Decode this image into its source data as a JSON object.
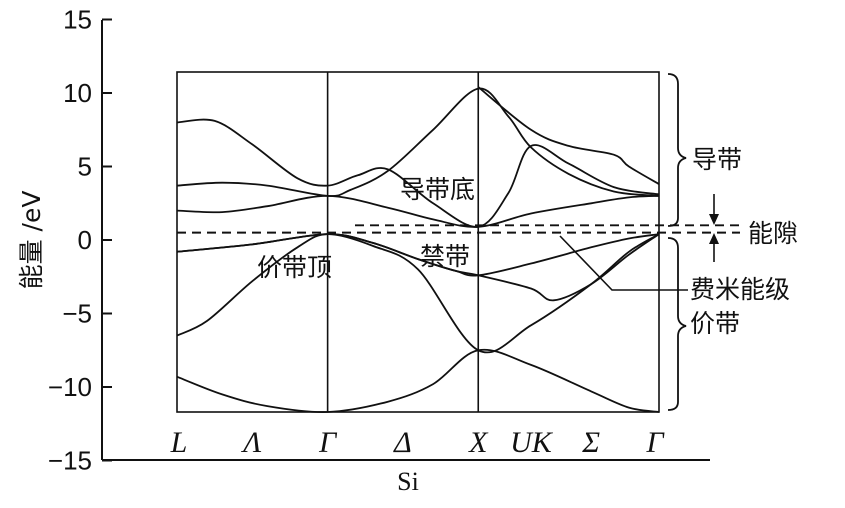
{
  "chart_data": {
    "type": "line",
    "title": "",
    "xlabel": "Si",
    "ylabel": "能量 /eV",
    "ylim": [
      -15,
      15
    ],
    "yticks": [
      15,
      10,
      5,
      0,
      -5,
      -10,
      -15
    ],
    "k_points": [
      "L",
      "Λ",
      "Γ",
      "Δ",
      "X",
      "UK",
      "Σ",
      "Γ"
    ],
    "k_point_positions": [
      0,
      0.5,
      1,
      1.5,
      2,
      2.35,
      2.75,
      3.2
    ],
    "fermi_level": 0.5,
    "band_gap_edge": 1.0,
    "grid": false,
    "series": [
      {
        "values": [
          [
            0,
            -9.3
          ],
          [
            0.3,
            -10.5
          ],
          [
            0.6,
            -11.3
          ],
          [
            1,
            -11.7
          ],
          [
            1.4,
            -11.0
          ],
          [
            1.7,
            -9.8
          ],
          [
            2,
            -7.5
          ],
          [
            2.35,
            -8.5
          ],
          [
            2.75,
            -10.3
          ],
          [
            3.0,
            -11.4
          ],
          [
            3.2,
            -11.7
          ]
        ]
      },
      {
        "values": [
          [
            0,
            -6.5
          ],
          [
            0.2,
            -5.5
          ],
          [
            0.5,
            -2.8
          ],
          [
            0.8,
            -0.5
          ],
          [
            1,
            0.4
          ],
          [
            1.3,
            -0.4
          ],
          [
            1.6,
            -2.0
          ],
          [
            2,
            -7.5
          ],
          [
            2.35,
            -5.8
          ],
          [
            2.75,
            -3.0
          ],
          [
            3.0,
            -0.8
          ],
          [
            3.2,
            0.4
          ]
        ]
      },
      {
        "values": [
          [
            0,
            -0.8
          ],
          [
            0.5,
            -0.3
          ],
          [
            1,
            0.4
          ],
          [
            1.3,
            -0.2
          ],
          [
            1.6,
            -1.3
          ],
          [
            1.85,
            -2.1
          ],
          [
            2,
            -2.4
          ],
          [
            2.35,
            -3.3
          ],
          [
            2.5,
            -4.1
          ],
          [
            2.75,
            -3.0
          ],
          [
            3.0,
            -1.0
          ],
          [
            3.2,
            0.4
          ]
        ]
      },
      {
        "values": [
          [
            0,
            -0.8
          ],
          [
            0.5,
            -0.3
          ],
          [
            1,
            0.4
          ],
          [
            1.3,
            -0.2
          ],
          [
            1.6,
            -1.3
          ],
          [
            1.85,
            -2.1
          ],
          [
            2,
            -2.4
          ],
          [
            2.35,
            -1.6
          ],
          [
            2.75,
            -0.5
          ],
          [
            3.0,
            0.1
          ],
          [
            3.2,
            0.4
          ]
        ]
      },
      {
        "values": [
          [
            0,
            2.0
          ],
          [
            0.3,
            1.9
          ],
          [
            0.6,
            2.3
          ],
          [
            1,
            3.0
          ],
          [
            1.4,
            2.2
          ],
          [
            1.7,
            1.4
          ],
          [
            2,
            0.9
          ],
          [
            2.35,
            1.8
          ],
          [
            2.75,
            2.5
          ],
          [
            3.0,
            2.9
          ],
          [
            3.2,
            3.0
          ]
        ]
      },
      {
        "values": [
          [
            0,
            3.7
          ],
          [
            0.3,
            3.9
          ],
          [
            0.6,
            3.7
          ],
          [
            1,
            3.0
          ],
          [
            1.15,
            3.4
          ],
          [
            1.4,
            4.7
          ],
          [
            1.7,
            7.5
          ],
          [
            2,
            10.3
          ],
          [
            2.2,
            8.4
          ],
          [
            2.35,
            6.3
          ],
          [
            2.6,
            4.5
          ],
          [
            2.9,
            3.3
          ],
          [
            3.2,
            3.0
          ]
        ]
      },
      {
        "values": [
          [
            0,
            8.0
          ],
          [
            0.25,
            8.1
          ],
          [
            0.5,
            6.5
          ],
          [
            0.8,
            4.2
          ],
          [
            1,
            3.7
          ],
          [
            1.2,
            4.4
          ],
          [
            1.4,
            4.8
          ],
          [
            1.7,
            2.5
          ],
          [
            2,
            0.9
          ],
          [
            2.2,
            3.2
          ],
          [
            2.35,
            6.4
          ],
          [
            2.6,
            5.2
          ],
          [
            2.9,
            3.6
          ],
          [
            3.2,
            3.1
          ]
        ]
      },
      {
        "values": [
          [
            2,
            10.4
          ],
          [
            2.35,
            7.5
          ],
          [
            2.6,
            6.4
          ],
          [
            2.9,
            5.8
          ],
          [
            3.0,
            5.0
          ],
          [
            3.2,
            3.8
          ]
        ]
      }
    ]
  },
  "annotations": {
    "cbm": "导带底",
    "vbm": "价带顶",
    "forbidden": "禁带",
    "conduction_band": "导带",
    "band_gap": "能隙",
    "fermi": "费米能级",
    "valence_band": "价带"
  }
}
